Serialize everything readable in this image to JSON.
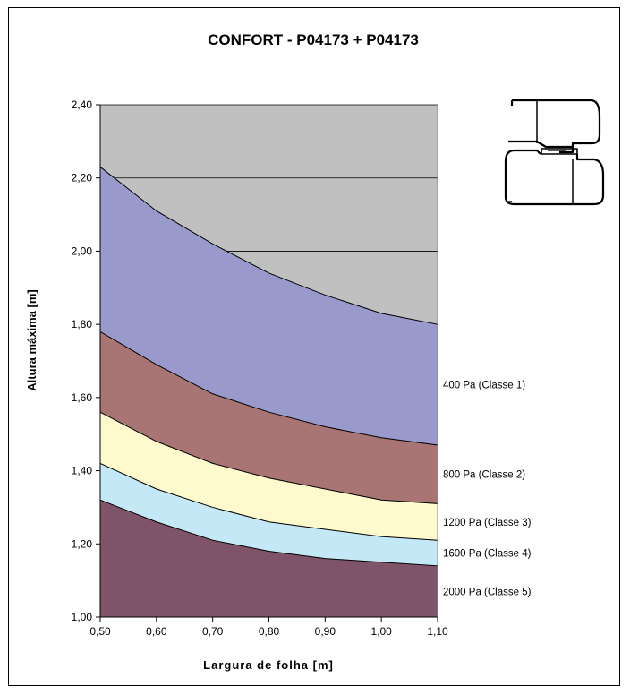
{
  "chart_data": {
    "type": "area",
    "title": "CONFORT -  P04173 + P04173",
    "xlabel": "Largura de folha [m]",
    "ylabel": "Altura máxima [m]",
    "xlim": [
      0.5,
      1.1
    ],
    "ylim": [
      1.0,
      2.4
    ],
    "x": [
      0.5,
      0.6,
      0.7,
      0.8,
      0.9,
      1.0,
      1.1
    ],
    "x_tick_labels": [
      "0,50",
      "0,60",
      "0,70",
      "0,80",
      "0,90",
      "1,00",
      "1,10"
    ],
    "y_ticks": [
      1.0,
      1.2,
      1.4,
      1.6,
      1.8,
      2.0,
      2.2,
      2.4
    ],
    "y_tick_labels": [
      "1,00",
      "1,20",
      "1,40",
      "1,60",
      "1,80",
      "2,00",
      "2,20",
      "2,40"
    ],
    "grid": "horizontal",
    "background_color": "#c0c0c0",
    "series": [
      {
        "name": "400 Pa (Classe 1)",
        "color": "#9999cc",
        "values": [
          2.23,
          2.11,
          2.02,
          1.94,
          1.88,
          1.83,
          1.8
        ]
      },
      {
        "name": "800 Pa (Classe 2)",
        "color": "#a87474",
        "values": [
          1.78,
          1.69,
          1.61,
          1.56,
          1.52,
          1.49,
          1.47
        ]
      },
      {
        "name": "1200 Pa (Classe 3)",
        "color": "#fffacd",
        "values": [
          1.56,
          1.48,
          1.42,
          1.38,
          1.35,
          1.32,
          1.31
        ]
      },
      {
        "name": "1600 Pa (Classe 4)",
        "color": "#c4e8f6",
        "values": [
          1.42,
          1.35,
          1.3,
          1.26,
          1.24,
          1.22,
          1.21
        ]
      },
      {
        "name": "2000 Pa (Classe 5)",
        "color": "#7f5468",
        "values": [
          1.32,
          1.26,
          1.21,
          1.18,
          1.16,
          1.15,
          1.14
        ]
      }
    ]
  }
}
